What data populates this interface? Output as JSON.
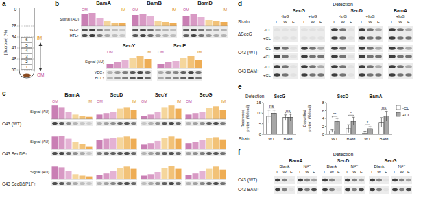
{
  "chart_data": [
    {
      "type": "bar",
      "title": "BamA",
      "annotations": [
        "OM",
        "IM"
      ],
      "y_label": "Signal (AU)",
      "blot_labels": [
        "YEG↑",
        "HTL↑"
      ],
      "values": [
        0.85,
        0.95,
        0.6,
        0.35,
        0.25,
        0.2
      ],
      "colors": [
        "#c97fb4",
        "#d899c4",
        "#e4b2d4",
        "#f5d69c",
        "#f2c278",
        "#eead55"
      ],
      "ylim": [
        0,
        1
      ],
      "tick_labels": false
    },
    {
      "type": "bar",
      "title": "BamB",
      "annotations": [
        "OM",
        "IM"
      ],
      "values": [
        0.8,
        0.9,
        0.7,
        0.4,
        0.3,
        0.25
      ],
      "colors": [
        "#c97fb4",
        "#d899c4",
        "#e4b2d4",
        "#f5d69c",
        "#f2c278",
        "#eead55"
      ],
      "ylim": [
        0,
        1
      ],
      "tick_labels": false
    },
    {
      "type": "bar",
      "title": "BamD",
      "annotations": [
        "OM",
        "IM"
      ],
      "values": [
        0.75,
        0.9,
        0.65,
        0.45,
        0.35,
        0.3
      ],
      "colors": [
        "#c97fb4",
        "#d899c4",
        "#e4b2d4",
        "#f5d69c",
        "#f2c278",
        "#eead55"
      ],
      "ylim": [
        0,
        1
      ],
      "tick_labels": false
    },
    {
      "type": "bar",
      "title": "SecY",
      "annotations": [
        "OM",
        "IM"
      ],
      "y_label": "Signal (AU)",
      "blot_labels": [
        "YEG↑",
        "HTL↑"
      ],
      "values": [
        0.3,
        0.45,
        0.6,
        0.8,
        0.9,
        0.7
      ],
      "colors": [
        "#c97fb4",
        "#d899c4",
        "#e4b2d4",
        "#f5d69c",
        "#f2c278",
        "#eead55"
      ],
      "ylim": [
        0,
        1
      ],
      "tick_labels": false
    },
    {
      "type": "bar",
      "title": "SecE",
      "annotations": [
        "OM",
        "IM"
      ],
      "values": [
        0.35,
        0.5,
        0.55,
        0.75,
        0.9,
        0.65
      ],
      "colors": [
        "#c97fb4",
        "#d899c4",
        "#e4b2d4",
        "#f5d69c",
        "#f2c278",
        "#eead55"
      ],
      "ylim": [
        0,
        1
      ],
      "tick_labels": false
    },
    {
      "type": "bar",
      "title": "BamA",
      "annotations": [
        "OM",
        "IM"
      ],
      "y_label": "Signal (AU)",
      "values": [
        0.9,
        0.8,
        0.5,
        0.3,
        0.2,
        0.15
      ],
      "colors": [
        "#c97fb4",
        "#d899c4",
        "#e4b2d4",
        "#f5d69c",
        "#f2c278",
        "#eead55"
      ],
      "ylim": [
        0,
        1
      ],
      "tick_labels": false
    },
    {
      "type": "bar",
      "title": "SecD",
      "annotations": [
        "OM",
        "IM"
      ],
      "values": [
        0.3,
        0.4,
        0.5,
        0.7,
        0.8,
        0.6
      ],
      "colors": [
        "#c97fb4",
        "#d899c4",
        "#e4b2d4",
        "#f5d69c",
        "#f2c278",
        "#eead55"
      ],
      "ylim": [
        0,
        1
      ],
      "tick_labels": false
    },
    {
      "type": "bar",
      "title": "SecY",
      "annotations": [
        "OM",
        "IM"
      ],
      "values": [
        0.2,
        0.3,
        0.5,
        0.8,
        0.9,
        0.7
      ],
      "colors": [
        "#c97fb4",
        "#d899c4",
        "#e4b2d4",
        "#f5d69c",
        "#f2c278",
        "#eead55"
      ],
      "ylim": [
        0,
        1
      ],
      "tick_labels": false
    },
    {
      "type": "bar",
      "title": "SecG",
      "annotations": [
        "OM",
        "IM"
      ],
      "values": [
        0.3,
        0.4,
        0.5,
        0.75,
        0.85,
        0.6
      ],
      "colors": [
        "#c97fb4",
        "#d899c4",
        "#e4b2d4",
        "#f5d69c",
        "#f2c278",
        "#eead55"
      ],
      "ylim": [
        0,
        1
      ],
      "tick_labels": false
    },
    {
      "type": "bar",
      "y_label": "Signal (AU)",
      "values": [
        0.85,
        0.9,
        0.7,
        0.5,
        0.35,
        0.2
      ],
      "colors": [
        "#c97fb4",
        "#d899c4",
        "#e4b2d4",
        "#f5d69c",
        "#f2c278",
        "#eead55"
      ],
      "ylim": [
        0,
        1
      ],
      "tick_labels": false
    },
    {
      "type": "bar",
      "values": [
        0.6,
        0.7,
        0.75,
        0.8,
        0.85,
        0.7
      ],
      "colors": [
        "#c97fb4",
        "#d899c4",
        "#e4b2d4",
        "#f5d69c",
        "#f2c278",
        "#eead55"
      ],
      "ylim": [
        0,
        1
      ],
      "tick_labels": false
    },
    {
      "type": "bar",
      "values": [
        0.3,
        0.4,
        0.55,
        0.75,
        0.85,
        0.7
      ],
      "colors": [
        "#c97fb4",
        "#d899c4",
        "#e4b2d4",
        "#f5d69c",
        "#f2c278",
        "#eead55"
      ],
      "ylim": [
        0,
        1
      ],
      "tick_labels": false
    },
    {
      "type": "bar",
      "values": [
        0.4,
        0.5,
        0.6,
        0.75,
        0.8,
        0.65
      ],
      "colors": [
        "#c97fb4",
        "#d899c4",
        "#e4b2d4",
        "#f5d69c",
        "#f2c278",
        "#eead55"
      ],
      "ylim": [
        0,
        1
      ],
      "tick_labels": false
    },
    {
      "type": "bar",
      "y_label": "Signal (AU)",
      "values": [
        0.85,
        0.8,
        0.55,
        0.35,
        0.25,
        0.2
      ],
      "colors": [
        "#c97fb4",
        "#d899c4",
        "#e4b2d4",
        "#f5d69c",
        "#f2c278",
        "#eead55"
      ],
      "ylim": [
        0,
        1
      ],
      "tick_labels": false
    },
    {
      "type": "bar",
      "values": [
        0.3,
        0.4,
        0.55,
        0.75,
        0.85,
        0.7
      ],
      "colors": [
        "#c97fb4",
        "#d899c4",
        "#e4b2d4",
        "#f5d69c",
        "#f2c278",
        "#eead55"
      ],
      "ylim": [
        0,
        1
      ],
      "tick_labels": false
    },
    {
      "type": "bar",
      "values": [
        0.25,
        0.35,
        0.5,
        0.75,
        0.9,
        0.7
      ],
      "colors": [
        "#c97fb4",
        "#d899c4",
        "#e4b2d4",
        "#f5d69c",
        "#f2c278",
        "#eead55"
      ],
      "ylim": [
        0,
        1
      ],
      "tick_labels": false
    },
    {
      "type": "bar",
      "values": [
        0.3,
        0.4,
        0.55,
        0.7,
        0.85,
        0.65
      ],
      "colors": [
        "#c97fb4",
        "#d899c4",
        "#e4b2d4",
        "#f5d69c",
        "#f2c278",
        "#eead55"
      ],
      "ylim": [
        0,
        1
      ],
      "tick_labels": false
    },
    {
      "type": "bar",
      "y_label": "Recovered protein (% load)",
      "groups": [
        "SecG"
      ],
      "categories": [
        "WT",
        "BAM"
      ],
      "ylim": [
        0,
        15
      ],
      "yticks": [
        0,
        5,
        10,
        15
      ],
      "series": [
        {
          "name": "-CL",
          "color": "#ffffff",
          "values": [
            8.5,
            8
          ],
          "errors": [
            3,
            1.2
          ]
        },
        {
          "name": "+CL",
          "color": "#a6a6a6",
          "values": [
            10,
            8
          ],
          "errors": [
            1.5,
            1.5
          ]
        }
      ],
      "annotations": [
        "ns",
        "ns"
      ]
    },
    {
      "type": "bar",
      "y_label": "Copurified protein (% load)",
      "groups": [
        "SecD",
        "BamA"
      ],
      "categories": [
        "WT",
        "BAM",
        "WT",
        "BAM"
      ],
      "ylim": [
        0,
        8
      ],
      "yticks": [
        0,
        2,
        4,
        6,
        8
      ],
      "series": [
        {
          "name": "-CL",
          "color": "#ffffff",
          "values": [
            0.8,
            1.4,
            0.3,
            3.0
          ],
          "errors": [
            0.3,
            1.0,
            0.3,
            1.2
          ]
        },
        {
          "name": "+CL",
          "color": "#a6a6a6",
          "values": [
            3.2,
            3.3,
            1.4,
            4.6
          ],
          "errors": [
            0.8,
            1.0,
            0.5,
            1.2
          ]
        }
      ],
      "annotations": [
        "**",
        "*",
        "*",
        "ns"
      ],
      "legend": "right"
    }
  ],
  "figure": {
    "a": {
      "letter": "a",
      "axis_label": "[Sucrose] (%)",
      "sucrose": [
        0,
        28,
        34,
        41,
        48,
        55
      ],
      "fractions": [
        6,
        5,
        4,
        3,
        2,
        1
      ],
      "im": "IM",
      "om": "OM"
    },
    "b": {
      "letter": "b"
    },
    "c": {
      "letter": "c",
      "rows": [
        "C43 (WT)",
        "C43 SecDF↑",
        "C43 SecDΔP1F↑"
      ]
    },
    "d": {
      "letter": "d",
      "detection": "Detection",
      "strain": "Strain",
      "groups": [
        {
          "name": "SecG",
          "conditions": [
            "-IgG",
            "+IgG"
          ]
        },
        {
          "name": "SecD",
          "conditions": [
            "-IgG",
            "+IgG"
          ]
        },
        {
          "name": "BamA",
          "conditions": [
            "+IgG"
          ]
        }
      ],
      "lanes": [
        "L",
        "W",
        "E"
      ],
      "strains": [
        "ΔSecG",
        "C43 (WT)",
        "C43 BAM↑"
      ],
      "lipids": [
        "-CL",
        "+CL"
      ]
    },
    "e": {
      "letter": "e",
      "detection": "Detection",
      "strain": "Strain"
    },
    "f": {
      "letter": "f",
      "detection": "Detection",
      "groups": [
        {
          "name": "BamA",
          "conditions": [
            "Blank",
            "Ni²⁺"
          ]
        },
        {
          "name": "SecD",
          "conditions": [
            "Blank",
            "Ni²⁺"
          ]
        },
        {
          "name": "SecG",
          "conditions": [
            "Blank",
            "Ni²⁺"
          ]
        }
      ],
      "lanes": [
        "L",
        "W",
        "E"
      ],
      "strains": [
        "C43 (WT)",
        "C43 BAM↑"
      ]
    }
  }
}
